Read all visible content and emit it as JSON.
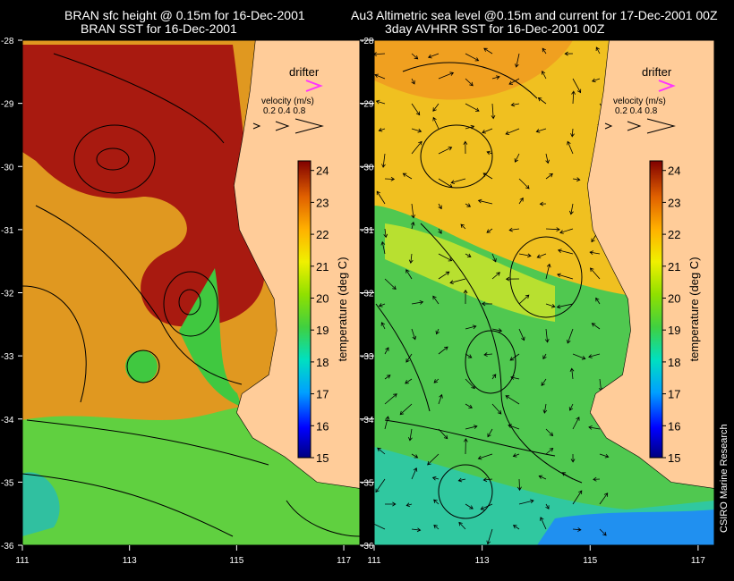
{
  "left_panel": {
    "title_line1": "BRAN sfc height @ 0.15m for 16-Dec-2001",
    "title_line2": "BRAN SST for 16-Dec-2001"
  },
  "right_panel": {
    "title_line1": "Au3 Altimetric sea level  @0.15m and current for 17-Dec-2001 00Z",
    "title_line2": "3day AVHRR SST for 16-Dec-2001 00Z"
  },
  "legend": {
    "drifter_label": "drifter",
    "velocity_title": "velocity (m/s)",
    "velocity_values": "0.2 0.4 0.8",
    "drifter_color": "#ff33ff"
  },
  "credit": "CSIRO Marine Research",
  "chart_data": {
    "type": "heatmap",
    "x_ticks": [
      111,
      113,
      115,
      117
    ],
    "y_ticks": [
      -28,
      -29,
      -30,
      -31,
      -32,
      -33,
      -34,
      -35,
      -36
    ],
    "xlim": [
      111,
      117.3
    ],
    "ylim": [
      -36,
      -28
    ],
    "colorbar": {
      "label": "temperature (deg C)",
      "ticks": [
        15,
        16,
        17,
        18,
        19,
        20,
        21,
        22,
        23,
        24
      ],
      "range": [
        15,
        24.3
      ]
    },
    "land_color": "#ffcc99",
    "coastline": [
      [
        115.35,
        -28.0
      ],
      [
        115.25,
        -28.8
      ],
      [
        115.1,
        -29.6
      ],
      [
        114.95,
        -30.3
      ],
      [
        115.05,
        -31.0
      ],
      [
        115.4,
        -31.6
      ],
      [
        115.7,
        -32.1
      ],
      [
        115.75,
        -32.6
      ],
      [
        115.6,
        -33.3
      ],
      [
        115.1,
        -33.6
      ],
      [
        115.0,
        -33.9
      ],
      [
        115.3,
        -34.3
      ],
      [
        115.9,
        -34.6
      ],
      [
        116.5,
        -35.0
      ],
      [
        117.3,
        -35.1
      ]
    ]
  }
}
